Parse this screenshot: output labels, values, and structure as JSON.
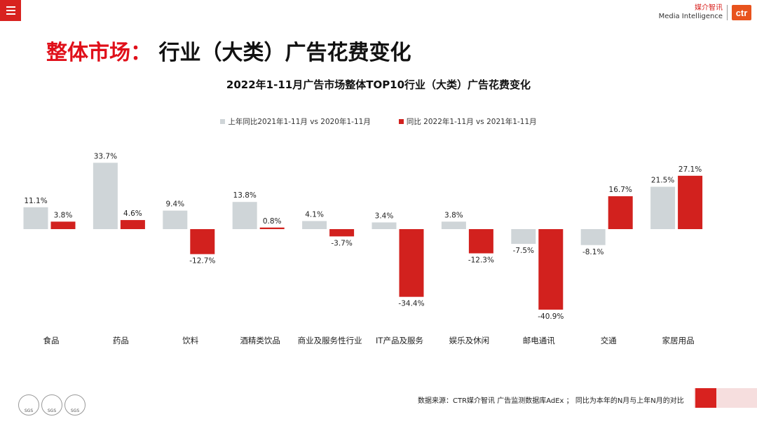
{
  "header": {
    "brand_cn": "媒介智讯",
    "brand_en": "Media Intelligence",
    "logo_text": "ctr"
  },
  "page_title": {
    "part1": "整体市场：",
    "part2": "行业（大类）广告花费变化"
  },
  "footer": {
    "source": "数据来源：CTR媒介智讯 广告监测数据库AdEx ；  同比为本年的N月与上年N月的对比",
    "cert_labels": [
      "SGS",
      "SGS",
      "SGS"
    ]
  },
  "colors": {
    "accent": "#d8221f",
    "series_prev": "#cfd5d8",
    "series_curr": "#d2211e"
  },
  "chart_data": {
    "type": "bar",
    "title": "2022年1-11月广告市场整体TOP10行业（大类）广告花费变化",
    "categories": [
      "食品",
      "药品",
      "饮料",
      "酒精类饮品",
      "商业及服务性行业",
      "IT产品及服务",
      "娱乐及休闲",
      "邮电通讯",
      "交通",
      "家居用品"
    ],
    "series": [
      {
        "name": "上年同比2021年1-11月  vs 2020年1-11月",
        "values": [
          11.1,
          33.7,
          9.4,
          13.8,
          4.1,
          3.4,
          3.8,
          -7.5,
          -8.1,
          21.5
        ]
      },
      {
        "name": "同比 2022年1-11月  vs 2021年1-11月",
        "values": [
          3.8,
          4.6,
          -12.7,
          0.8,
          -3.7,
          -34.4,
          -12.3,
          -40.9,
          16.7,
          27.1
        ]
      }
    ],
    "unit": "%",
    "legend_position": "top-center",
    "grid": false
  }
}
